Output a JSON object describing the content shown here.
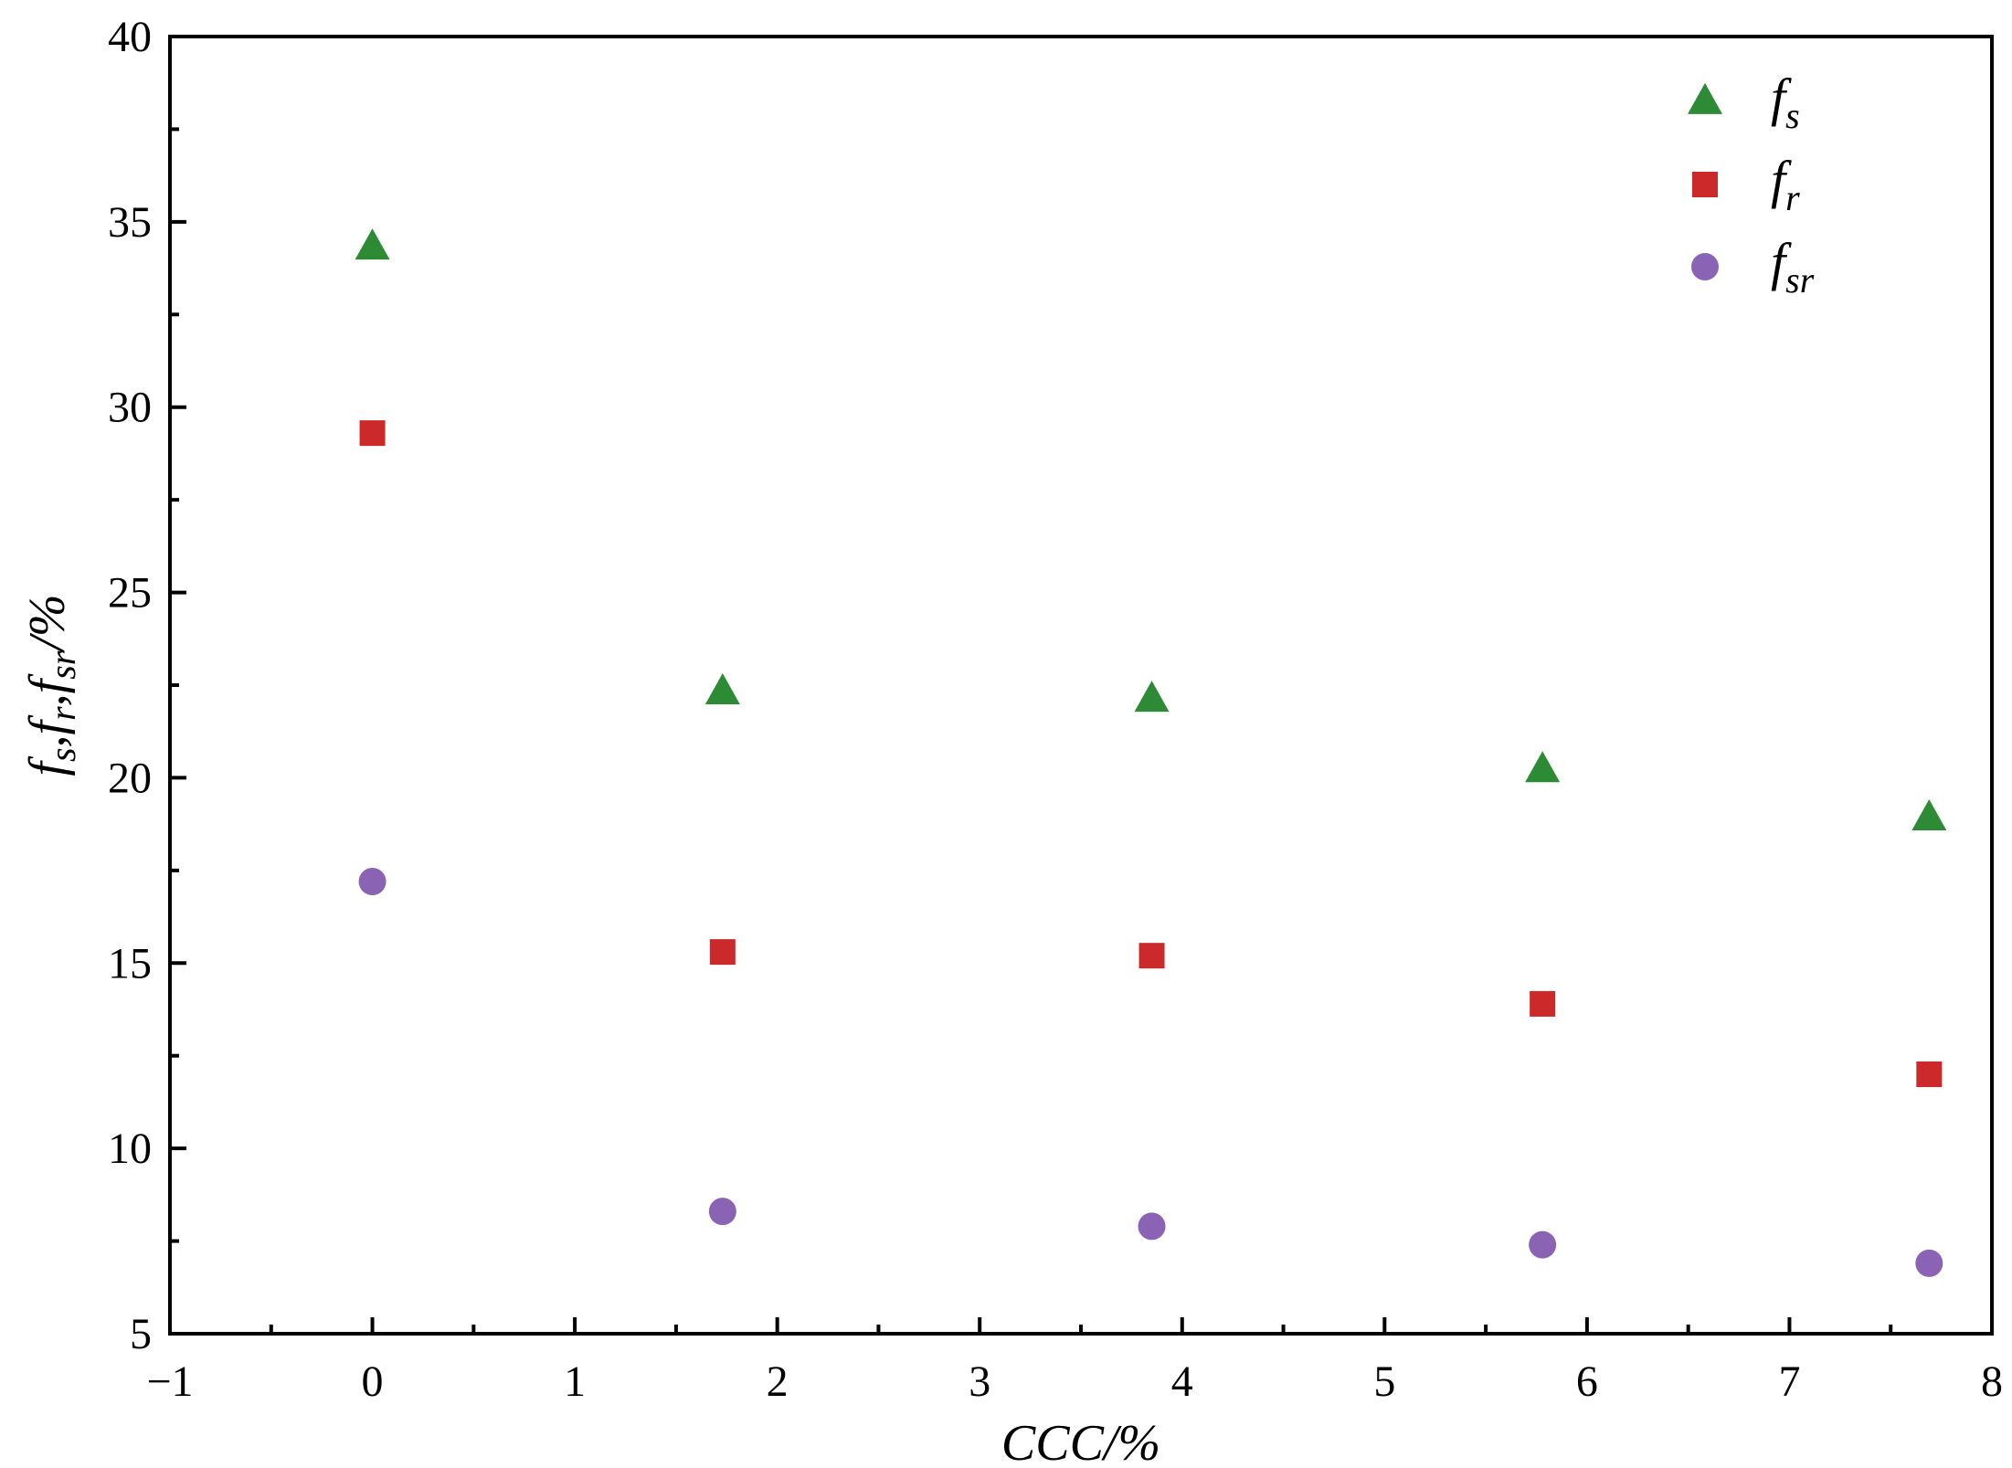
{
  "chart_data": {
    "type": "scatter",
    "title": "",
    "xlabel": "CCC/%",
    "ylabel": "f_s, f_r, f_sr/%",
    "ylabel_parts": {
      "f1": "f",
      "sub1": "s",
      "sep1": ",",
      "f2": "f",
      "sub2": "r",
      "sep2": ",",
      "f3": "f",
      "sub3": "sr",
      "tail": "/%"
    },
    "xlim": [
      -1,
      8
    ],
    "ylim": [
      5,
      40
    ],
    "x_ticks": [
      -1,
      0,
      1,
      2,
      3,
      4,
      5,
      6,
      7,
      8
    ],
    "x_tick_labels": [
      "−1",
      "0",
      "1",
      "2",
      "3",
      "4",
      "5",
      "6",
      "7",
      "8"
    ],
    "y_ticks": [
      5,
      10,
      15,
      20,
      25,
      30,
      35,
      40
    ],
    "y_tick_labels": [
      "5",
      "10",
      "15",
      "20",
      "25",
      "30",
      "35",
      "40"
    ],
    "grid": false,
    "legend_position": "top-right",
    "x": [
      0,
      1.73,
      3.85,
      5.78,
      7.69
    ],
    "series": [
      {
        "name": "f_s",
        "label_main": "f",
        "label_sub": "s",
        "marker": "triangle",
        "color": "#2e8b35",
        "values": [
          34.3,
          22.3,
          22.1,
          20.2,
          18.9
        ]
      },
      {
        "name": "f_r",
        "label_main": "f",
        "label_sub": "r",
        "marker": "square",
        "color": "#cc2a2a",
        "values": [
          29.3,
          15.3,
          15.2,
          13.9,
          12.0
        ]
      },
      {
        "name": "f_sr",
        "label_main": "f",
        "label_sub": "sr",
        "marker": "circle",
        "color": "#8a63b5",
        "values": [
          17.2,
          8.3,
          7.9,
          7.4,
          6.9
        ]
      }
    ]
  }
}
